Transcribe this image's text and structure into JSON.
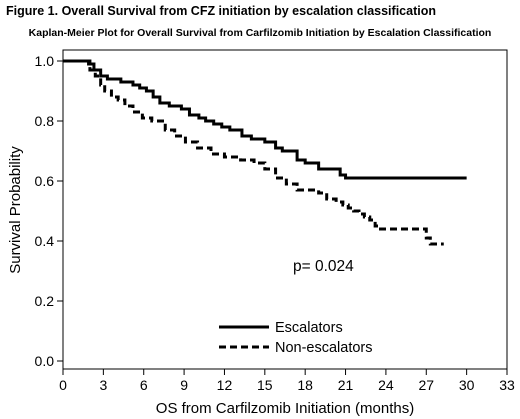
{
  "figure_title": "Figure 1.  Overall Survival from CFZ initiation by escalation classification",
  "chart_data": {
    "type": "line",
    "title": "Kaplan-Meier Plot for Overall Survival from Carfilzomib Initiation by Escalation Classification",
    "xlabel": "OS from Carfilzomib Initiation (months)",
    "ylabel": "Survival Probability",
    "xlim": [
      0,
      33
    ],
    "ylim": [
      0,
      1
    ],
    "x_ticks": [
      0,
      3,
      6,
      9,
      12,
      15,
      18,
      21,
      24,
      27,
      30,
      33
    ],
    "y_ticks": [
      0.0,
      0.2,
      0.4,
      0.6,
      0.8,
      1.0
    ],
    "y_tick_labels": [
      "0.0",
      "0.2",
      "0.4",
      "0.6",
      "0.8",
      "1.0"
    ],
    "grid": false,
    "legend_position": "bottom-center",
    "series": [
      {
        "name": "Escalators",
        "style": "solid",
        "color": "#000000",
        "x": [
          0,
          1.9,
          2.3,
          2.8,
          3.3,
          4.3,
          5.2,
          5.7,
          6.2,
          6.7,
          7.2,
          7.9,
          8.8,
          9.4,
          10.1,
          10.6,
          11.2,
          11.8,
          12.4,
          13.3,
          14.0,
          15.0,
          15.8,
          16.3,
          17.4,
          18.0,
          19.0,
          20.6,
          21.0,
          22.0,
          24.0,
          27.0,
          30.0
        ],
        "y": [
          1.0,
          0.99,
          0.97,
          0.95,
          0.94,
          0.93,
          0.92,
          0.91,
          0.9,
          0.88,
          0.86,
          0.85,
          0.84,
          0.82,
          0.81,
          0.8,
          0.79,
          0.78,
          0.77,
          0.75,
          0.74,
          0.73,
          0.71,
          0.7,
          0.67,
          0.66,
          0.64,
          0.62,
          0.61,
          0.61,
          0.61,
          0.61,
          0.61
        ]
      },
      {
        "name": "Non-escalators",
        "style": "dashed",
        "color": "#000000",
        "x": [
          0,
          2.0,
          2.4,
          2.8,
          3.1,
          3.6,
          4.1,
          4.6,
          5.2,
          5.9,
          6.6,
          7.6,
          8.3,
          9.1,
          10.0,
          11.0,
          12.0,
          13.2,
          14.2,
          15.0,
          15.8,
          16.6,
          17.4,
          18.4,
          19.0,
          19.6,
          20.3,
          20.8,
          21.2,
          21.6,
          22.0,
          22.4,
          22.8,
          23.2,
          23.6,
          24.0,
          25.5,
          27.0,
          27.3,
          28.3
        ],
        "y": [
          1.0,
          0.97,
          0.95,
          0.92,
          0.9,
          0.88,
          0.87,
          0.85,
          0.83,
          0.81,
          0.8,
          0.77,
          0.75,
          0.73,
          0.71,
          0.69,
          0.68,
          0.67,
          0.66,
          0.64,
          0.61,
          0.59,
          0.57,
          0.57,
          0.56,
          0.54,
          0.53,
          0.52,
          0.51,
          0.5,
          0.49,
          0.48,
          0.47,
          0.45,
          0.44,
          0.44,
          0.44,
          0.41,
          0.39,
          0.39
        ]
      }
    ],
    "annotation": "p= 0.024"
  }
}
